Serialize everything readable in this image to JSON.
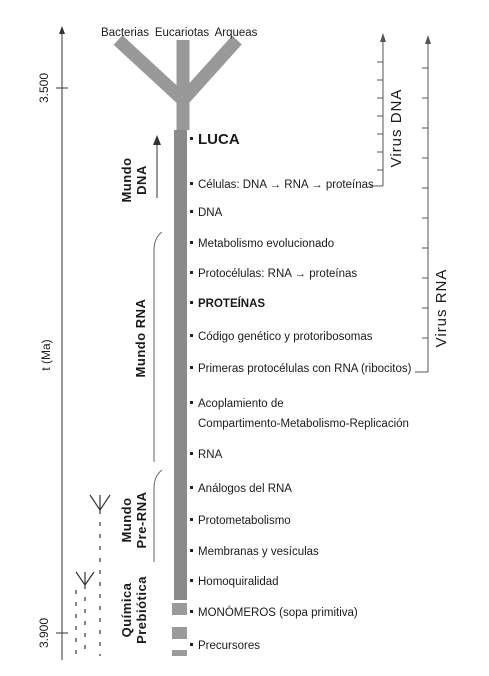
{
  "domains": [
    "Bacterias",
    "Eucariotas",
    "Arqueas"
  ],
  "luca": "LUCA",
  "events": [
    "Células: DNA → RNA → proteínas",
    "DNA",
    "Metabolismo evolucionado",
    "Protocélulas: RNA → proteínas",
    "PROTEÍNAS",
    "Código genético y protoribosomas",
    "Primeras protocélulas con RNA (ribocitos)",
    "Acoplamiento de",
    "Compartimento-Metabolismo-Replicación",
    "RNA",
    "Análogos del RNA",
    "Protometabolismo",
    "Membranas y vesículas",
    "Homoquiralidad",
    "MONÓMEROS (sopa primitiva)",
    "Precursores"
  ],
  "worlds": {
    "dna_1": "Mundo",
    "dna_2": "DNA",
    "rna": "Mundo RNA",
    "prerna_1": "Mundo",
    "prerna_2": "Pre-RNA",
    "prebiotic_1": "Química",
    "prebiotic_2": "Prebiótica"
  },
  "virus": {
    "dna": "Virus DNA",
    "rna": "Virus RNA"
  },
  "axis": {
    "label": "t (Ma)",
    "top_tick": "3.500",
    "bottom_tick": "3.900"
  },
  "colors": {
    "trunk": "#8a8a8a",
    "text": "#1a1a1a"
  }
}
